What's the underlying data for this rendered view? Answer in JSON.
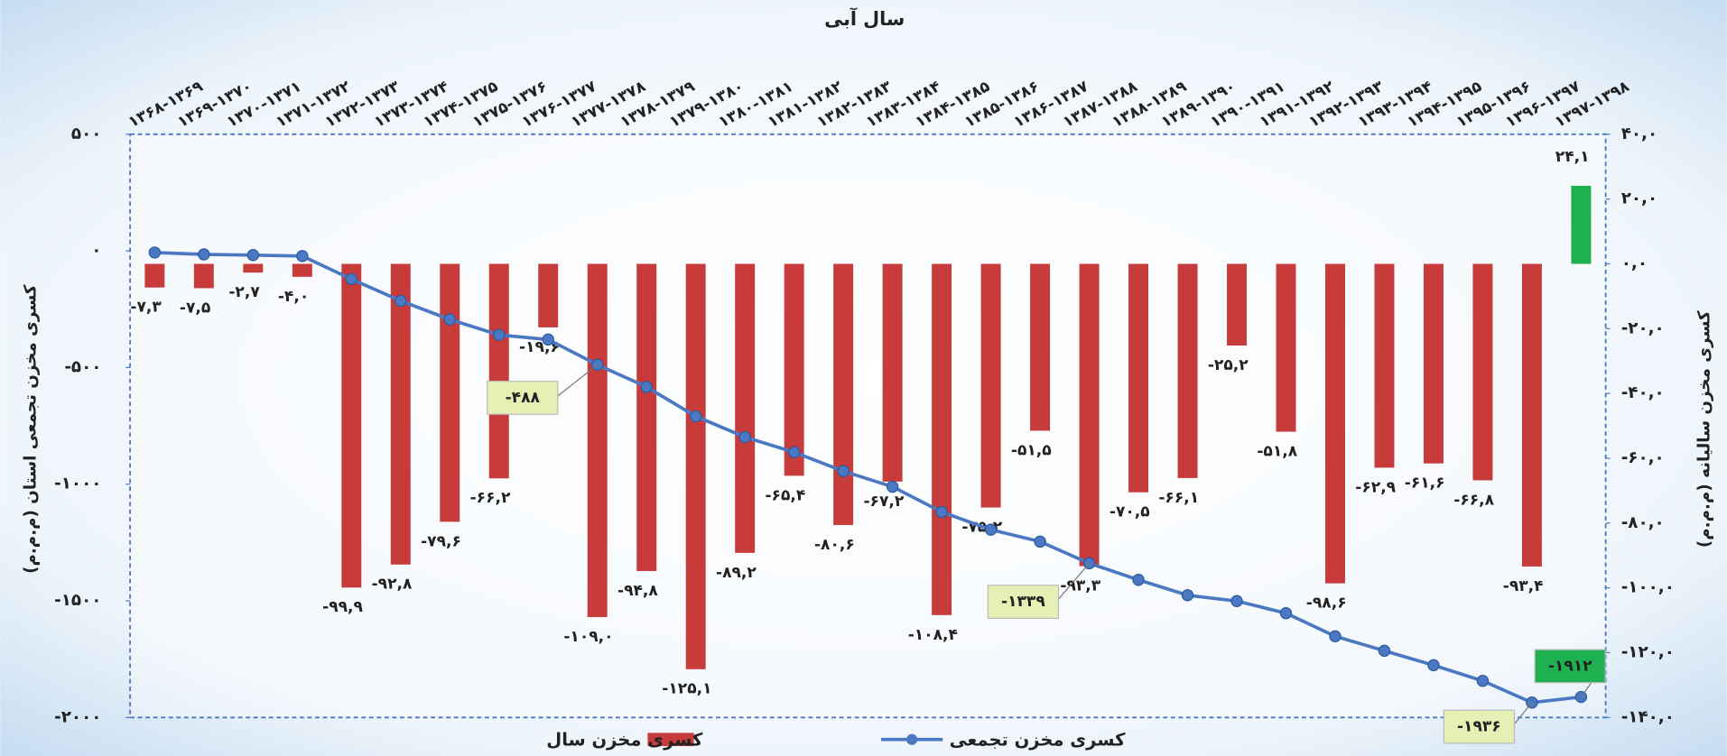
{
  "chart_data": {
    "type": "bar",
    "title": "سال آبی",
    "y_label": "کسری مخزن تجمعی استان (م.م.م)",
    "y2_label": "کسری مخزن سالیانه (م.م.م)",
    "categories": [
      "۱۳۶۸-۱۳۶۹",
      "۱۳۶۹-۱۳۷۰",
      "۱۳۷۰-۱۳۷۱",
      "۱۳۷۱-۱۳۷۲",
      "۱۳۷۲-۱۳۷۳",
      "۱۳۷۳-۱۳۷۴",
      "۱۳۷۴-۱۳۷۵",
      "۱۳۷۵-۱۳۷۶",
      "۱۳۷۶-۱۳۷۷",
      "۱۳۷۷-۱۳۷۸",
      "۱۳۷۸-۱۳۷۹",
      "۱۳۷۹-۱۳۸۰",
      "۱۳۸۰-۱۳۸۱",
      "۱۳۸۱-۱۳۸۲",
      "۱۳۸۲-۱۳۸۳",
      "۱۳۸۳-۱۳۸۴",
      "۱۳۸۴-۱۳۸۵",
      "۱۳۸۵-۱۳۸۶",
      "۱۳۸۶-۱۳۸۷",
      "۱۳۸۷-۱۳۸۸",
      "۱۳۸۸-۱۳۸۹",
      "۱۳۸۹-۱۳۹۰",
      "۱۳۹۰-۱۳۹۱",
      "۱۳۹۱-۱۳۹۲",
      "۱۳۹۲-۱۳۹۳",
      "۱۳۹۳-۱۳۹۴",
      "۱۳۹۴-۱۳۹۵",
      "۱۳۹۵-۱۳۹۶",
      "۱۳۹۶-۱۳۹۷",
      "۱۳۹۷-۱۳۹۸"
    ],
    "series": [
      {
        "name": "کسری مخزن سال",
        "type": "bar",
        "axis": "y2",
        "color": "#c83b3b",
        "positive_color": "#1fb14f",
        "values": [
          -7.3,
          -7.5,
          -2.7,
          -4.0,
          -99.9,
          -92.8,
          -79.6,
          -66.2,
          -19.6,
          -109.0,
          -94.8,
          -125.1,
          -89.2,
          -65.4,
          -80.6,
          -67.2,
          -108.4,
          -75.2,
          -51.5,
          -93.3,
          -70.5,
          -66.1,
          -25.2,
          -51.8,
          -98.6,
          -62.9,
          -61.6,
          -66.8,
          -93.4,
          24.1
        ],
        "value_labels": [
          "-۷,۳",
          "-۷,۵",
          "-۲,۷",
          "-۴,۰",
          "-۹۹,۹",
          "-۹۲,۸",
          "-۷۹,۶",
          "-۶۶,۲",
          "-۱۹,۶",
          "-۱۰۹,۰",
          "-۹۴,۸",
          "-۱۲۵,۱",
          "-۸۹,۲",
          "-۶۵,۴",
          "-۸۰,۶",
          "-۶۷,۲",
          "-۱۰۸,۴",
          "-۷۵,۲",
          "-۵۱,۵",
          "-۹۳,۳",
          "-۷۰,۵",
          "-۶۶,۱",
          "-۲۵,۲",
          "-۵۱,۸",
          "-۹۸,۶",
          "-۶۲,۹",
          "-۶۱,۶",
          "-۶۶,۸",
          "-۹۳,۴",
          "۲۴,۱"
        ]
      },
      {
        "name": "کسری مخزن تجمعی",
        "type": "line",
        "color": "#4a78c2",
        "values": [
          -7,
          -15,
          -18,
          -22,
          -121,
          -214,
          -294,
          -360,
          -380,
          -488,
          -583,
          -709,
          -798,
          -863,
          -944,
          -1011,
          -1119,
          -1195,
          -1246,
          -1339,
          -1410,
          -1476,
          -1501,
          -1553,
          -1652,
          -1714,
          -1776,
          -1843,
          -1936,
          -1912
        ],
        "value_labels": [
          null,
          null,
          null,
          null,
          null,
          null,
          null,
          null,
          null,
          "-۴۸۸",
          null,
          null,
          null,
          null,
          null,
          null,
          null,
          null,
          null,
          "-۱۳۳۹",
          null,
          null,
          null,
          null,
          null,
          null,
          null,
          null,
          "-۱۹۳۶",
          "-۱۹۱۲"
        ]
      }
    ],
    "ylim": [
      -2000,
      500
    ],
    "yticks": [
      {
        "value": 500,
        "label": "۵۰۰"
      },
      {
        "value": 0,
        "label": "۰"
      },
      {
        "value": -500,
        "label": "-۵۰۰"
      },
      {
        "value": -1000,
        "label": "-۱۰۰۰"
      },
      {
        "value": -1500,
        "label": "-۱۵۰۰"
      },
      {
        "value": -2000,
        "label": "-۲۰۰۰"
      }
    ],
    "y2lim": [
      -140,
      40
    ],
    "y2ticks": [
      {
        "value": 40,
        "label": "۴۰,۰"
      },
      {
        "value": 20,
        "label": "۲۰,۰"
      },
      {
        "value": 0,
        "label": "۰,۰"
      },
      {
        "value": -20,
        "label": "-۲۰,۰"
      },
      {
        "value": -40,
        "label": "-۴۰,۰"
      },
      {
        "value": -60,
        "label": "-۶۰,۰"
      },
      {
        "value": -80,
        "label": "-۸۰,۰"
      },
      {
        "value": -100,
        "label": "-۱۰۰,۰"
      },
      {
        "value": -120,
        "label": "-۱۲۰,۰"
      },
      {
        "value": -140,
        "label": "-۱۴۰,۰"
      }
    ],
    "grid": false,
    "legend": "bottom"
  }
}
